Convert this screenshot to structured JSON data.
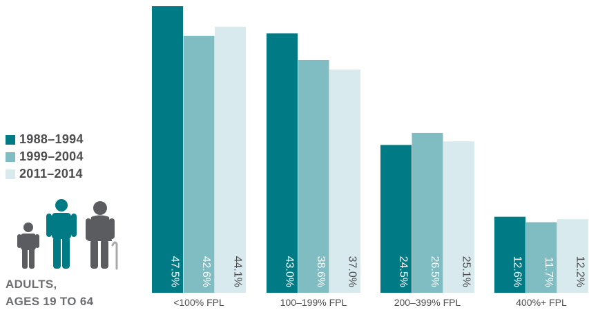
{
  "chart_data": {
    "type": "bar",
    "categories": [
      "<100% FPL",
      "100–199% FPL",
      "200–399% FPL",
      "400%+ FPL"
    ],
    "series": [
      {
        "name": "1988–1994",
        "color": "#007a84",
        "values": [
          47.5,
          43.0,
          24.5,
          12.6
        ],
        "labels": [
          "47.5%",
          "43.0%",
          "24.5%",
          "12.6%"
        ]
      },
      {
        "name": "1999–2004",
        "color": "#80bdc2",
        "values": [
          42.6,
          38.6,
          26.5,
          11.7
        ],
        "labels": [
          "42.6%",
          "38.6%",
          "26.5%",
          "11.7%"
        ]
      },
      {
        "name": "2011–2014",
        "color": "#d8eaed",
        "values": [
          44.1,
          37.0,
          25.1,
          12.2
        ],
        "labels": [
          "44.1%",
          "37.0%",
          "25.1%",
          "12.2%"
        ]
      }
    ],
    "ylim": [
      0,
      48
    ],
    "legend": "left",
    "grid": false
  },
  "caption": {
    "line1": "ADULTS,",
    "line2": "AGES 19 TO 64"
  },
  "icons": [
    "child-figure-icon",
    "adult-figure-icon",
    "elderly-figure-icon"
  ]
}
